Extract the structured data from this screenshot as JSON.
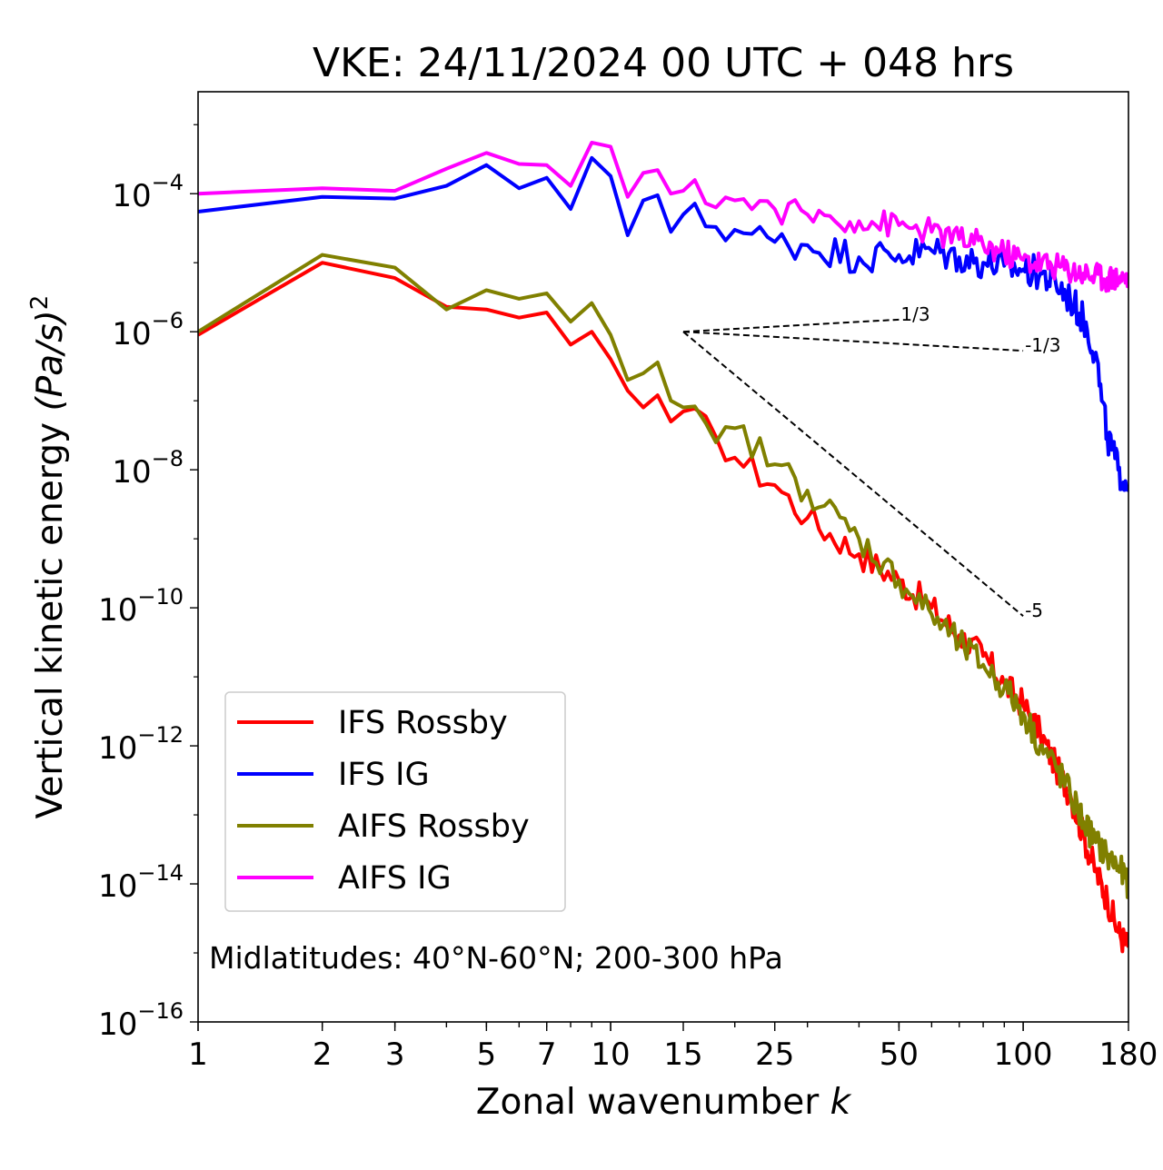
{
  "chart_data": {
    "type": "line",
    "title": "VKE: 24/11/2024 00 UTC + 048 hrs",
    "xlabel": "Zonal wavenumber",
    "xlabel_var": "k",
    "ylabel": "Vertical kinetic energy",
    "ylabel_unit": "(Pa/s)",
    "ylabel_unit_exp": "2",
    "xscale": "log",
    "yscale": "log",
    "xlim": [
      1,
      180
    ],
    "ylim": [
      1e-16,
      0.003
    ],
    "x_ticks": [
      {
        "v": 1,
        "label": "1"
      },
      {
        "v": 2,
        "label": "2"
      },
      {
        "v": 3,
        "label": "3"
      },
      {
        "v": 5,
        "label": "5"
      },
      {
        "v": 7,
        "label": "7"
      },
      {
        "v": 10,
        "label": "10"
      },
      {
        "v": 15,
        "label": "15"
      },
      {
        "v": 25,
        "label": "25"
      },
      {
        "v": 50,
        "label": "50"
      },
      {
        "v": 100,
        "label": "100"
      },
      {
        "v": 180,
        "label": "180"
      }
    ],
    "y_ticks": [
      {
        "exp": -4,
        "base": "10",
        "sup": "−4"
      },
      {
        "exp": -6,
        "base": "10",
        "sup": "−6"
      },
      {
        "exp": -8,
        "base": "10",
        "sup": "−8"
      },
      {
        "exp": -10,
        "base": "10",
        "sup": "−10"
      },
      {
        "exp": -12,
        "base": "10",
        "sup": "−12"
      },
      {
        "exp": -14,
        "base": "10",
        "sup": "−14"
      },
      {
        "exp": -16,
        "base": "10",
        "sup": "−16"
      }
    ],
    "legend_position": "lower-left",
    "annotation": "Midlatitudes: 40°N-60°N; 200-300 hPa",
    "series": [
      {
        "name": "IFS Rossby",
        "color": "#ff0000",
        "key": [
          [
            1,
            9e-07
          ],
          [
            2,
            1e-05
          ],
          [
            3,
            6e-06
          ],
          [
            4,
            2.3e-06
          ],
          [
            5,
            2.1e-06
          ],
          [
            6,
            1.6e-06
          ],
          [
            7,
            1.9e-06
          ],
          [
            8,
            6.5e-07
          ],
          [
            9,
            1e-06
          ],
          [
            10,
            4e-07
          ],
          [
            11,
            1.4e-07
          ],
          [
            12,
            8e-08
          ],
          [
            13,
            1.2e-07
          ],
          [
            14,
            5e-08
          ],
          [
            15,
            7e-08
          ],
          [
            18,
            3e-08
          ],
          [
            20,
            1.5e-08
          ],
          [
            25,
            6e-09
          ],
          [
            30,
            2e-09
          ],
          [
            40,
            6e-10
          ],
          [
            50,
            2.5e-10
          ],
          [
            60,
            1e-10
          ],
          [
            70,
            4e-11
          ],
          [
            80,
            2e-11
          ],
          [
            90,
            8e-12
          ],
          [
            100,
            4e-12
          ],
          [
            110,
            1.5e-12
          ],
          [
            120,
            5e-13
          ],
          [
            130,
            2e-13
          ],
          [
            140,
            5e-14
          ],
          [
            150,
            1.5e-14
          ],
          [
            160,
            6e-15
          ],
          [
            170,
            2e-15
          ],
          [
            180,
            1.2e-15
          ]
        ],
        "wiggle": 0.22
      },
      {
        "name": "IFS IG",
        "color": "#0000ff",
        "key": [
          [
            1,
            5.5e-05
          ],
          [
            2,
            9e-05
          ],
          [
            3,
            8.5e-05
          ],
          [
            4,
            0.00013
          ],
          [
            5,
            0.00026
          ],
          [
            6,
            0.00012
          ],
          [
            7,
            0.00017
          ],
          [
            8,
            6e-05
          ],
          [
            9,
            0.00033
          ],
          [
            10,
            0.00018
          ],
          [
            11,
            2.5e-05
          ],
          [
            12,
            8e-05
          ],
          [
            13,
            9.5e-05
          ],
          [
            14,
            2.8e-05
          ],
          [
            15,
            5e-05
          ],
          [
            20,
            3e-05
          ],
          [
            25,
            2e-05
          ],
          [
            30,
            1.8e-05
          ],
          [
            40,
            1.2e-05
          ],
          [
            50,
            1.3e-05
          ],
          [
            60,
            1.5e-05
          ],
          [
            70,
            1.2e-05
          ],
          [
            80,
            1e-05
          ],
          [
            90,
            9e-06
          ],
          [
            100,
            8e-06
          ],
          [
            110,
            7e-06
          ],
          [
            120,
            5e-06
          ],
          [
            130,
            3e-06
          ],
          [
            140,
            1.5e-06
          ],
          [
            150,
            5e-07
          ],
          [
            155,
            1e-07
          ],
          [
            160,
            3e-08
          ],
          [
            170,
            1e-08
          ],
          [
            180,
            6e-09
          ]
        ],
        "wiggle": 0.25
      },
      {
        "name": "AIFS Rossby",
        "color": "#808000",
        "key": [
          [
            1,
            1e-06
          ],
          [
            2,
            1.3e-05
          ],
          [
            3,
            8.5e-06
          ],
          [
            4,
            2.1e-06
          ],
          [
            5,
            4e-06
          ],
          [
            6,
            3e-06
          ],
          [
            7,
            3.6e-06
          ],
          [
            8,
            1.4e-06
          ],
          [
            9,
            2.6e-06
          ],
          [
            10,
            9e-07
          ],
          [
            11,
            2e-07
          ],
          [
            12,
            2.5e-07
          ],
          [
            13,
            3.6e-07
          ],
          [
            14,
            1e-07
          ],
          [
            15,
            8e-08
          ],
          [
            18,
            2.5e-08
          ],
          [
            20,
            4e-08
          ],
          [
            25,
            1.2e-08
          ],
          [
            30,
            5e-09
          ],
          [
            40,
            1e-09
          ],
          [
            50,
            2.5e-10
          ],
          [
            60,
            8e-11
          ],
          [
            70,
            3e-11
          ],
          [
            80,
            1.5e-11
          ],
          [
            90,
            7e-12
          ],
          [
            100,
            3e-12
          ],
          [
            110,
            1e-12
          ],
          [
            120,
            5e-13
          ],
          [
            130,
            2e-13
          ],
          [
            140,
            8e-14
          ],
          [
            150,
            4e-14
          ],
          [
            160,
            2.5e-14
          ],
          [
            170,
            1.8e-14
          ],
          [
            180,
            1e-14
          ]
        ],
        "wiggle": 0.22
      },
      {
        "name": "AIFS IG",
        "color": "#ff00ff",
        "key": [
          [
            1,
            0.0001
          ],
          [
            2,
            0.00012
          ],
          [
            3,
            0.00011
          ],
          [
            4,
            0.00023
          ],
          [
            5,
            0.00039
          ],
          [
            6,
            0.00027
          ],
          [
            7,
            0.00026
          ],
          [
            8,
            0.00013
          ],
          [
            9,
            0.00055
          ],
          [
            10,
            0.00048
          ],
          [
            11,
            9e-05
          ],
          [
            12,
            0.0002
          ],
          [
            13,
            0.00022
          ],
          [
            14,
            0.0001
          ],
          [
            15,
            0.00011
          ],
          [
            20,
            8e-05
          ],
          [
            25,
            6e-05
          ],
          [
            30,
            5e-05
          ],
          [
            40,
            4e-05
          ],
          [
            50,
            3.5e-05
          ],
          [
            60,
            2.8e-05
          ],
          [
            70,
            2.2e-05
          ],
          [
            80,
            1.8e-05
          ],
          [
            90,
            1.4e-05
          ],
          [
            100,
            1.1e-05
          ],
          [
            120,
            9e-06
          ],
          [
            140,
            7e-06
          ],
          [
            160,
            6e-06
          ],
          [
            180,
            6e-06
          ]
        ],
        "wiggle": 0.2
      }
    ],
    "reference_lines": [
      {
        "label": "1/3",
        "x": [
          15,
          50
        ],
        "y": [
          1e-06,
          1.5e-06
        ]
      },
      {
        "label": "-1/3",
        "x": [
          15,
          100
        ],
        "y": [
          1e-06,
          5.3e-07
        ]
      },
      {
        "label": "-5",
        "x": [
          15,
          100
        ],
        "y": [
          1e-06,
          7.6e-11
        ]
      }
    ]
  }
}
